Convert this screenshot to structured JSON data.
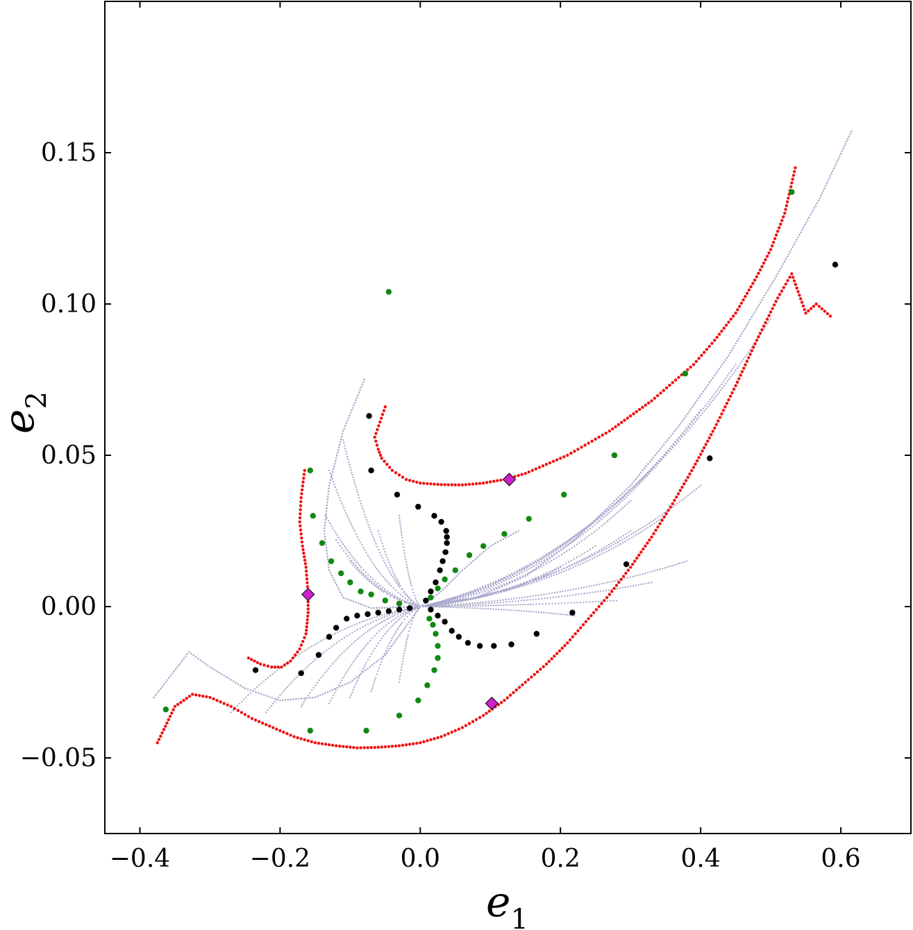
{
  "chart_data": {
    "type": "scatter",
    "xlabel_base": "e",
    "xlabel_sub": "1",
    "ylabel_base": "e",
    "ylabel_sub": "2",
    "xlim": [
      -0.45,
      0.7
    ],
    "ylim": [
      -0.075,
      0.2
    ],
    "xticks": [
      -0.4,
      -0.2,
      0.0,
      0.2,
      0.4,
      0.6
    ],
    "xtick_labels": [
      "−0.4",
      "−0.2",
      "0.0",
      "0.2",
      "0.4",
      "0.6"
    ],
    "yticks": [
      -0.05,
      0.0,
      0.05,
      0.1,
      0.15
    ],
    "ytick_labels": [
      "−0.05",
      "0.00",
      "0.05",
      "0.10",
      "0.15"
    ],
    "grid": false,
    "legend": "none",
    "colors": {
      "lavender": "#a8a8cc",
      "red": "#ee1111",
      "green": "#118811",
      "black": "#000000",
      "magenta": "#cc22cc"
    },
    "series": [
      {
        "color_key": "red",
        "marker": "small-dot",
        "curves": [
          [
            [
              -0.05,
              0.066
            ],
            [
              -0.065,
              0.056
            ],
            [
              -0.06,
              0.052
            ],
            [
              -0.055,
              0.049
            ],
            [
              -0.04,
              0.045
            ],
            [
              -0.02,
              0.042
            ],
            [
              0.0,
              0.0408
            ],
            [
              0.03,
              0.0403
            ],
            [
              0.06,
              0.0402
            ],
            [
              0.09,
              0.0408
            ],
            [
              0.12,
              0.042
            ],
            [
              0.15,
              0.044
            ],
            [
              0.18,
              0.047
            ],
            [
              0.21,
              0.05
            ],
            [
              0.24,
              0.054
            ],
            [
              0.27,
              0.058
            ],
            [
              0.3,
              0.063
            ],
            [
              0.33,
              0.068
            ],
            [
              0.36,
              0.074
            ],
            [
              0.39,
              0.08
            ],
            [
              0.42,
              0.088
            ],
            [
              0.45,
              0.097
            ],
            [
              0.48,
              0.109
            ],
            [
              0.5,
              0.118
            ],
            [
              0.52,
              0.13
            ],
            [
              0.535,
              0.145
            ]
          ],
          [
            [
              -0.165,
              0.045
            ],
            [
              -0.17,
              0.036
            ],
            [
              -0.172,
              0.028
            ],
            [
              -0.168,
              0.02
            ],
            [
              -0.163,
              0.013
            ],
            [
              -0.16,
              0.004
            ],
            [
              -0.16,
              -0.002
            ],
            [
              -0.163,
              -0.009
            ],
            [
              -0.172,
              -0.014
            ],
            [
              -0.185,
              -0.018
            ],
            [
              -0.198,
              -0.02
            ],
            [
              -0.212,
              -0.02
            ],
            [
              -0.228,
              -0.019
            ],
            [
              -0.245,
              -0.017
            ]
          ],
          [
            [
              -0.375,
              -0.045
            ],
            [
              -0.35,
              -0.033
            ],
            [
              -0.325,
              -0.029
            ],
            [
              -0.3,
              -0.03
            ],
            [
              -0.27,
              -0.033
            ],
            [
              -0.24,
              -0.037
            ],
            [
              -0.21,
              -0.04
            ],
            [
              -0.18,
              -0.043
            ],
            [
              -0.15,
              -0.045
            ],
            [
              -0.12,
              -0.046
            ],
            [
              -0.09,
              -0.0467
            ],
            [
              -0.06,
              -0.0465
            ],
            [
              -0.03,
              -0.046
            ],
            [
              0.0,
              -0.045
            ],
            [
              0.03,
              -0.043
            ],
            [
              0.06,
              -0.04
            ],
            [
              0.09,
              -0.036
            ],
            [
              0.12,
              -0.031
            ],
            [
              0.15,
              -0.025
            ],
            [
              0.18,
              -0.019
            ],
            [
              0.21,
              -0.012
            ],
            [
              0.24,
              -0.004
            ],
            [
              0.27,
              0.004
            ],
            [
              0.3,
              0.013
            ],
            [
              0.33,
              0.023
            ],
            [
              0.36,
              0.034
            ],
            [
              0.39,
              0.046
            ],
            [
              0.42,
              0.059
            ],
            [
              0.45,
              0.073
            ],
            [
              0.48,
              0.088
            ],
            [
              0.51,
              0.102
            ],
            [
              0.53,
              0.11
            ],
            [
              0.55,
              0.097
            ],
            [
              0.565,
              0.1
            ],
            [
              0.585,
              0.096
            ]
          ]
        ]
      },
      {
        "color_key": "green",
        "marker": "dot",
        "points": [
          [
            -0.045,
            0.104
          ],
          [
            0.53,
            0.137
          ],
          [
            0.378,
            0.077
          ],
          [
            0.277,
            0.05
          ],
          [
            0.205,
            0.037
          ],
          [
            0.155,
            0.029
          ],
          [
            0.12,
            0.024
          ],
          [
            0.09,
            0.02
          ],
          [
            0.07,
            0.017
          ],
          [
            0.05,
            0.012
          ],
          [
            0.035,
            0.009
          ],
          [
            0.025,
            0.006
          ],
          [
            0.015,
            0.003
          ],
          [
            -0.157,
            0.045
          ],
          [
            -0.153,
            0.03
          ],
          [
            -0.14,
            0.021
          ],
          [
            -0.127,
            0.015
          ],
          [
            -0.113,
            0.011
          ],
          [
            -0.1,
            0.008
          ],
          [
            -0.085,
            0.005
          ],
          [
            -0.07,
            0.004
          ],
          [
            -0.05,
            0.002
          ],
          [
            -0.03,
            0.001
          ],
          [
            -0.363,
            -0.034
          ],
          [
            -0.157,
            -0.041
          ],
          [
            -0.077,
            -0.041
          ],
          [
            -0.03,
            -0.036
          ],
          [
            -0.003,
            -0.031
          ],
          [
            0.01,
            -0.026
          ],
          [
            0.02,
            -0.021
          ],
          [
            0.025,
            -0.017
          ],
          [
            0.025,
            -0.013
          ],
          [
            0.022,
            -0.009
          ],
          [
            0.018,
            -0.006
          ],
          [
            0.013,
            -0.004
          ]
        ]
      },
      {
        "color_key": "black",
        "marker": "dot",
        "points": [
          [
            0.592,
            0.113
          ],
          [
            -0.073,
            0.063
          ],
          [
            -0.07,
            0.045
          ],
          [
            -0.033,
            0.037
          ],
          [
            -0.003,
            0.033
          ],
          [
            0.02,
            0.03
          ],
          [
            0.03,
            0.028
          ],
          [
            0.037,
            0.025
          ],
          [
            0.038,
            0.023
          ],
          [
            0.038,
            0.021
          ],
          [
            0.036,
            0.018
          ],
          [
            0.032,
            0.015
          ],
          [
            0.028,
            0.012
          ],
          [
            0.022,
            0.008
          ],
          [
            0.015,
            0.005
          ],
          [
            0.008,
            0.002
          ],
          [
            0.413,
            0.049
          ],
          [
            0.294,
            0.014
          ],
          [
            0.217,
            -0.002
          ],
          [
            0.166,
            -0.009
          ],
          [
            0.13,
            -0.0125
          ],
          [
            0.105,
            -0.013
          ],
          [
            0.085,
            -0.013
          ],
          [
            0.068,
            -0.012
          ],
          [
            0.055,
            -0.01
          ],
          [
            0.045,
            -0.008
          ],
          [
            0.035,
            -0.005
          ],
          [
            0.025,
            -0.003
          ],
          [
            0.015,
            -0.001
          ],
          [
            -0.235,
            -0.021
          ],
          [
            -0.17,
            -0.022
          ],
          [
            -0.145,
            -0.016
          ],
          [
            -0.13,
            -0.01
          ],
          [
            -0.12,
            -0.007
          ],
          [
            -0.105,
            -0.004
          ],
          [
            -0.09,
            -0.003
          ],
          [
            -0.075,
            -0.0025
          ],
          [
            -0.06,
            -0.002
          ],
          [
            -0.045,
            -0.0015
          ],
          [
            -0.03,
            -0.001
          ],
          [
            -0.015,
            -0.0005
          ]
        ]
      },
      {
        "color_key": "magenta",
        "marker": "diamond",
        "points": [
          [
            0.127,
            0.042
          ],
          [
            -0.16,
            0.004
          ],
          [
            0.102,
            -0.032
          ]
        ]
      },
      {
        "color_key": "lavender",
        "marker": "tiny-dot",
        "curves": [
          [
            [
              -0.08,
              0.075
            ],
            [
              -0.11,
              0.058
            ],
            [
              -0.13,
              0.04
            ],
            [
              -0.137,
              0.025
            ],
            [
              -0.13,
              0.012
            ],
            [
              -0.11,
              0.003
            ],
            [
              -0.07,
              -0.0005
            ],
            [
              0.0,
              0.0
            ]
          ],
          [
            [
              -0.38,
              -0.03
            ],
            [
              -0.33,
              -0.015
            ],
            [
              -0.3,
              -0.02
            ],
            [
              -0.25,
              -0.027
            ],
            [
              -0.2,
              -0.031
            ],
            [
              -0.15,
              -0.03
            ],
            [
              -0.1,
              -0.025
            ],
            [
              -0.05,
              -0.016
            ],
            [
              0.0,
              0.0
            ]
          ],
          [
            [
              0.615,
              0.157
            ],
            [
              0.57,
              0.135
            ],
            [
              0.51,
              0.11
            ],
            [
              0.44,
              0.083
            ],
            [
              0.37,
              0.06
            ],
            [
              0.3,
              0.04
            ],
            [
              0.22,
              0.022
            ],
            [
              0.15,
              0.01
            ],
            [
              0.08,
              0.003
            ],
            [
              0.0,
              0.0
            ]
          ],
          [
            [
              0.14,
              0.025
            ],
            [
              0.1,
              0.02
            ],
            [
              0.06,
              0.012
            ],
            [
              0.03,
              0.005
            ],
            [
              0.0,
              0.0
            ]
          ]
        ],
        "fan_endpoints": [
          [
            -0.11,
            0.055
          ],
          [
            -0.13,
            0.045
          ],
          [
            -0.135,
            0.03
          ],
          [
            -0.12,
            0.022
          ],
          [
            -0.1,
            0.015
          ],
          [
            -0.06,
            0.025
          ],
          [
            -0.03,
            0.03
          ],
          [
            -0.27,
            -0.035
          ],
          [
            -0.22,
            -0.035
          ],
          [
            -0.17,
            -0.033
          ],
          [
            -0.13,
            -0.032
          ],
          [
            -0.1,
            -0.03
          ],
          [
            -0.07,
            -0.028
          ],
          [
            -0.03,
            -0.025
          ],
          [
            0.3,
            0.035
          ],
          [
            0.35,
            0.05
          ],
          [
            0.4,
            0.065
          ],
          [
            0.45,
            0.08
          ],
          [
            0.5,
            0.095
          ],
          [
            0.2,
            0.013
          ],
          [
            0.25,
            0.02
          ],
          [
            0.3,
            0.025
          ],
          [
            0.35,
            0.03
          ],
          [
            0.4,
            0.04
          ],
          [
            0.22,
            -0.003
          ],
          [
            0.28,
            0.002
          ],
          [
            0.33,
            0.008
          ],
          [
            0.38,
            0.015
          ]
        ]
      }
    ]
  }
}
